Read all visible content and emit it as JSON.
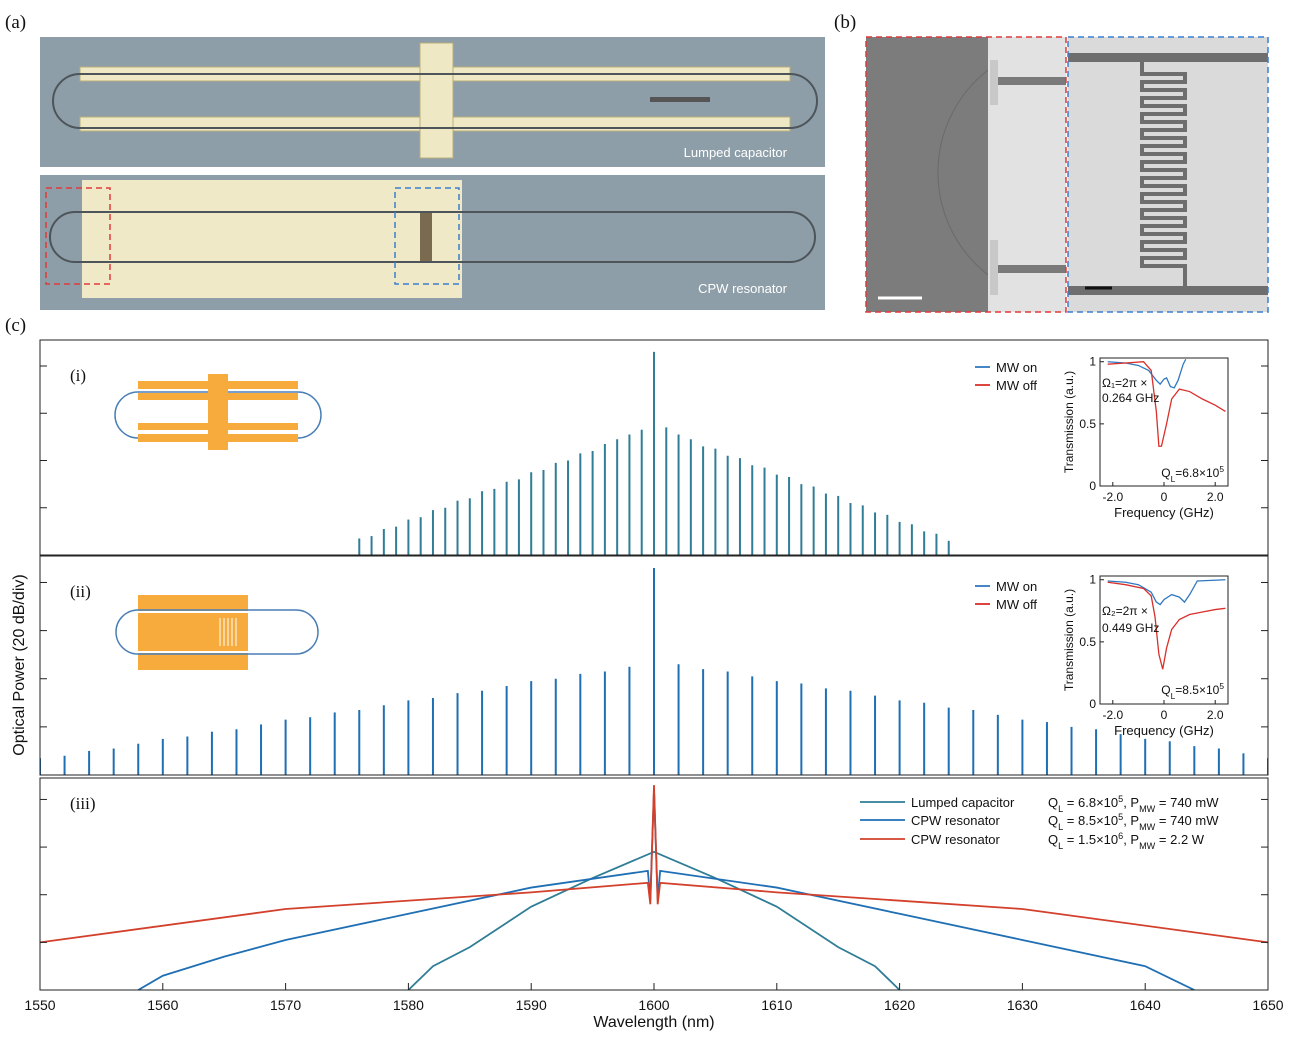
{
  "panels": {
    "a": "(a)",
    "b": "(b)",
    "c": "(c)"
  },
  "micrographs": {
    "top_label": "Lumped capacitor",
    "bottom_label": "CPW resonator"
  },
  "shared_ylabel": "Optical Power (20 dB/div)",
  "chart_data": [
    {
      "type": "comb",
      "label": "(i)",
      "color": "#2f7d96",
      "xlim": [
        1550,
        1650
      ],
      "ylim": [
        -80,
        11
      ],
      "yticks": [
        0,
        -20,
        -40,
        -60
      ],
      "x": [
        1576,
        1577,
        1578,
        1579,
        1580,
        1581,
        1582,
        1583,
        1584,
        1585,
        1586,
        1587,
        1588,
        1589,
        1590,
        1591,
        1592,
        1593,
        1594,
        1595,
        1596,
        1597,
        1598,
        1599,
        1600,
        1601,
        1602,
        1603,
        1604,
        1605,
        1606,
        1607,
        1608,
        1609,
        1610,
        1611,
        1612,
        1613,
        1614,
        1615,
        1616,
        1617,
        1618,
        1619,
        1620,
        1621,
        1622,
        1623,
        1624
      ],
      "values": [
        -73,
        -72,
        -69,
        -68,
        -65,
        -64,
        -61,
        -60,
        -57,
        -56,
        -53,
        -52,
        -49,
        -48,
        -45,
        -44,
        -41,
        -40,
        -37,
        -36,
        -33,
        -31,
        -29,
        -27,
        6,
        -26,
        -29,
        -31,
        -34,
        -35,
        -38,
        -39,
        -42,
        -43,
        -46,
        -47,
        -50,
        -51,
        -54,
        -55,
        -58,
        -59,
        -62,
        -63,
        -66,
        -67,
        -70,
        -71,
        -74
      ]
    },
    {
      "type": "comb",
      "label": "(ii)",
      "color": "#1f6fb4",
      "xlim": [
        1550,
        1650
      ],
      "ylim": [
        -80,
        11
      ],
      "yticks": [
        0,
        -20,
        -40,
        -60
      ],
      "x": [
        1550,
        1552,
        1554,
        1556,
        1558,
        1560,
        1562,
        1564,
        1566,
        1568,
        1570,
        1572,
        1574,
        1576,
        1578,
        1580,
        1582,
        1584,
        1586,
        1588,
        1590,
        1592,
        1594,
        1596,
        1598,
        1600,
        1602,
        1604,
        1606,
        1608,
        1610,
        1612,
        1614,
        1616,
        1618,
        1620,
        1622,
        1624,
        1626,
        1628,
        1630,
        1632,
        1634,
        1636,
        1638,
        1640,
        1642,
        1644,
        1646,
        1648,
        1650
      ],
      "values": [
        -73,
        -72,
        -70,
        -69,
        -67,
        -65,
        -64,
        -62,
        -61,
        -59,
        -57,
        -56,
        -54,
        -53,
        -51,
        -49,
        -48,
        -46,
        -45,
        -43,
        -41,
        -40,
        -38,
        -37,
        -35,
        6,
        -34,
        -36,
        -37,
        -39,
        -41,
        -42,
        -44,
        -45,
        -47,
        -49,
        -50,
        -52,
        -53,
        -55,
        -57,
        -58,
        -60,
        -61,
        -63,
        -65,
        -66,
        -68,
        -69,
        -71,
        -73
      ]
    },
    {
      "type": "line",
      "label": "(iii)",
      "xlabel": "Wavelength (nm)",
      "xlim": [
        1550,
        1650
      ],
      "ylim": [
        -80,
        9
      ],
      "yticks": [
        0,
        -20,
        -40,
        -60
      ],
      "xticks": [
        1550,
        1560,
        1570,
        1580,
        1590,
        1600,
        1610,
        1620,
        1630,
        1640,
        1650
      ],
      "series": [
        {
          "name": "Lumped capacitor",
          "color": "#2f7d96",
          "x": [
            1580,
            1582,
            1585,
            1590,
            1595,
            1600,
            1605,
            1610,
            1615,
            1618,
            1620
          ],
          "values": [
            -80,
            -70,
            -62,
            -45,
            -33,
            -22,
            -33,
            -45,
            -62,
            -70,
            -80
          ],
          "note": [
            {
              "t": "Q"
            },
            {
              "t": "L",
              "sub": true
            },
            {
              "t": " = 6.8×10"
            },
            {
              "t": "5",
              "sup": true
            },
            {
              "t": ", P"
            },
            {
              "t": "MW",
              "sub": true
            },
            {
              "t": " = 740 mW"
            }
          ]
        },
        {
          "name": "CPW resonator",
          "color": "#1f6fb4",
          "x": [
            1558,
            1560,
            1565,
            1570,
            1580,
            1590,
            1599.5,
            1599.7,
            1600,
            1600.3,
            1600.5,
            1610,
            1620,
            1630,
            1640,
            1644
          ],
          "values": [
            -80,
            -74,
            -66,
            -59,
            -48,
            -37,
            -30,
            -42,
            4,
            -42,
            -30,
            -37,
            -48,
            -59,
            -70,
            -80
          ],
          "note": [
            {
              "t": "Q"
            },
            {
              "t": "L",
              "sub": true
            },
            {
              "t": " = 8.5×10"
            },
            {
              "t": "5",
              "sup": true
            },
            {
              "t": ", P"
            },
            {
              "t": "MW",
              "sub": true
            },
            {
              "t": " = 740 mW"
            }
          ]
        },
        {
          "name": "CPW resonator",
          "color": "#d3402c",
          "x": [
            1550,
            1570,
            1590,
            1599.5,
            1599.7,
            1600,
            1600.3,
            1600.5,
            1610,
            1630,
            1650
          ],
          "values": [
            -60,
            -46,
            -39,
            -35,
            -44,
            6,
            -44,
            -35,
            -39,
            -46,
            -60
          ],
          "note": [
            {
              "t": "Q"
            },
            {
              "t": "L",
              "sub": true
            },
            {
              "t": " = 1.5×10"
            },
            {
              "t": "6",
              "sup": true
            },
            {
              "t": ", P"
            },
            {
              "t": "MW",
              "sub": true
            },
            {
              "t": " = 2.2 W"
            }
          ]
        }
      ]
    },
    {
      "type": "line",
      "xlabel": "Frequency (GHz)",
      "ylabel": "Transmission (a.u.)",
      "xlim": [
        -2.5,
        2.5
      ],
      "ylim": [
        0,
        1.03
      ],
      "xticks": [
        {
          "value": -2,
          "label": "-2.0"
        },
        0,
        {
          "value": 2,
          "label": "2.0"
        }
      ],
      "yticks": [
        0,
        0.5,
        1
      ],
      "series": [
        {
          "name": "MW on",
          "color": "#2f78c0",
          "x": [
            -2.2,
            -1.5,
            -1,
            -0.6,
            -0.3,
            -0.15,
            0,
            0.1,
            0.25,
            0.4,
            0.55,
            0.75,
            0.85
          ],
          "values": [
            1,
            0.99,
            0.97,
            0.93,
            0.85,
            0.82,
            0.86,
            0.87,
            0.8,
            0.79,
            0.85,
            0.98,
            1.02
          ]
        },
        {
          "name": "MW off",
          "color": "#d9302a",
          "x": [
            -2.2,
            -1.5,
            -0.8,
            -0.5,
            -0.3,
            -0.2,
            -0.1,
            0.1,
            0.3,
            0.6,
            1,
            1.5,
            2,
            2.4
          ],
          "values": [
            0.98,
            0.99,
            1,
            0.93,
            0.6,
            0.32,
            0.32,
            0.5,
            0.7,
            0.78,
            0.76,
            0.7,
            0.65,
            0.6
          ]
        }
      ],
      "annotations": [
        [
          {
            "t": "Ω₁=2π ×"
          }
        ],
        [
          {
            "t": "0.264 GHz"
          }
        ],
        [
          {
            "t": "Q"
          },
          {
            "t": "L",
            "sub": true
          },
          {
            "t": "=6.8×10"
          },
          {
            "t": "5",
            "sup": true
          }
        ]
      ]
    },
    {
      "type": "line",
      "xlabel": "Frequency (GHz)",
      "ylabel": "Transmission (a.u.)",
      "xlim": [
        -2.5,
        2.5
      ],
      "ylim": [
        0,
        1.03
      ],
      "xticks": [
        {
          "value": -2,
          "label": "-2.0"
        },
        0,
        {
          "value": 2,
          "label": "2.0"
        }
      ],
      "yticks": [
        0,
        0.5,
        1
      ],
      "series": [
        {
          "name": "MW on",
          "color": "#2f78c0",
          "x": [
            -2.2,
            -1.5,
            -1,
            -0.5,
            -0.3,
            -0.15,
            0,
            0.3,
            0.6,
            0.8,
            1,
            1.3,
            2.4
          ],
          "values": [
            0.99,
            0.98,
            0.96,
            0.9,
            0.82,
            0.8,
            0.84,
            0.88,
            0.86,
            0.82,
            0.88,
            0.99,
            1
          ]
        },
        {
          "name": "MW off",
          "color": "#d9302a",
          "x": [
            -2.2,
            -1.5,
            -0.8,
            -0.5,
            -0.35,
            -0.2,
            -0.05,
            0.1,
            0.3,
            0.6,
            1,
            1.5,
            2,
            2.4
          ],
          "values": [
            0.98,
            0.96,
            0.93,
            0.87,
            0.7,
            0.4,
            0.28,
            0.45,
            0.6,
            0.68,
            0.72,
            0.74,
            0.76,
            0.77
          ]
        }
      ],
      "annotations": [
        [
          {
            "t": "Ω₂=2π ×"
          }
        ],
        [
          {
            "t": "0.449 GHz"
          }
        ],
        [
          {
            "t": "Q"
          },
          {
            "t": "L",
            "sub": true
          },
          {
            "t": "=8.5×10"
          },
          {
            "t": "5",
            "sup": true
          }
        ]
      ]
    }
  ]
}
